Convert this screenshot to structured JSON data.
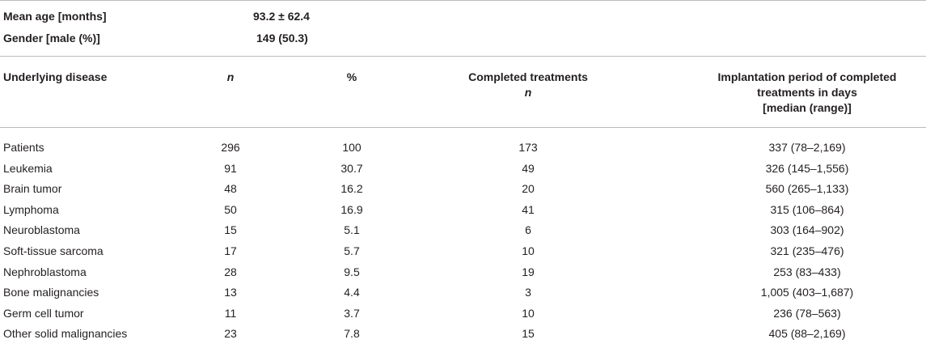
{
  "summary": {
    "mean_age_label": "Mean age [months]",
    "mean_age_value": "93.2 ± 62.4",
    "gender_label": "Gender [male (%)]",
    "gender_value": "149 (50.3)"
  },
  "columns": {
    "disease": "Underlying disease",
    "n": "n",
    "pct": "%",
    "completed_line1": "Completed treatments",
    "completed_line2": "n",
    "implant_line1": "Implantation period of completed",
    "implant_line2": "treatments in days",
    "implant_line3": "[median (range)]"
  },
  "rows": [
    {
      "disease": "Patients",
      "n": "296",
      "pct": "100",
      "completed": "173",
      "implant": "337 (78–2,169)"
    },
    {
      "disease": "Leukemia",
      "n": "91",
      "pct": "30.7",
      "completed": "49",
      "implant": "326 (145–1,556)"
    },
    {
      "disease": "Brain tumor",
      "n": "48",
      "pct": "16.2",
      "completed": "20",
      "implant": "560 (265–1,133)"
    },
    {
      "disease": "Lymphoma",
      "n": "50",
      "pct": "16.9",
      "completed": "41",
      "implant": "315 (106–864)"
    },
    {
      "disease": "Neuroblastoma",
      "n": "15",
      "pct": "5.1",
      "completed": "6",
      "implant": "303 (164–902)"
    },
    {
      "disease": "Soft-tissue sarcoma",
      "n": "17",
      "pct": "5.7",
      "completed": "10",
      "implant": "321 (235–476)"
    },
    {
      "disease": "Nephroblastoma",
      "n": "28",
      "pct": "9.5",
      "completed": "19",
      "implant": "253 (83–433)"
    },
    {
      "disease": "Bone malignancies",
      "n": "13",
      "pct": "4.4",
      "completed": "3",
      "implant": "1,005 (403–1,687)"
    },
    {
      "disease": "Germ cell tumor",
      "n": "11",
      "pct": "3.7",
      "completed": "10",
      "implant": "236 (78–563)"
    },
    {
      "disease": "Other solid malignancies",
      "n": "23",
      "pct": "7.8",
      "completed": "15",
      "implant": "405 (88–2,169)"
    }
  ]
}
